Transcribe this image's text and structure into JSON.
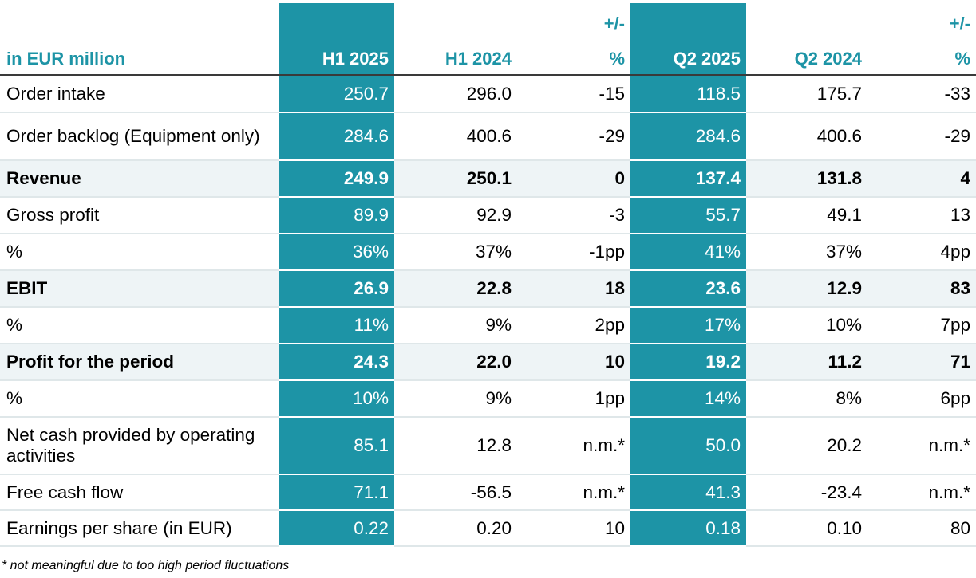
{
  "header": {
    "unit_label": "in EUR million",
    "col_h1_2025": "H1 2025",
    "col_h1_2024": "H1 2024",
    "col_h1_change_top": "+/-",
    "col_h1_change_bottom": "%",
    "col_q2_2025": "Q2 2025",
    "col_q2_2024": "Q2 2024",
    "col_q2_change_top": "+/-",
    "col_q2_change_bottom": "%"
  },
  "rows": [
    {
      "label": "Order intake",
      "h1_2025": "250.7",
      "h1_2024": "296.0",
      "h1_change": "-15",
      "q2_2025": "118.5",
      "q2_2024": "175.7",
      "q2_change": "-33"
    },
    {
      "label": "Order backlog (Equipment only)",
      "h1_2025": "284.6",
      "h1_2024": "400.6",
      "h1_change": "-29",
      "q2_2025": "284.6",
      "q2_2024": "400.6",
      "q2_change": "-29"
    },
    {
      "label": "Revenue",
      "h1_2025": "249.9",
      "h1_2024": "250.1",
      "h1_change": "0",
      "q2_2025": "137.4",
      "q2_2024": "131.8",
      "q2_change": "4"
    },
    {
      "label": "Gross profit",
      "h1_2025": "89.9",
      "h1_2024": "92.9",
      "h1_change": "-3",
      "q2_2025": "55.7",
      "q2_2024": "49.1",
      "q2_change": "13"
    },
    {
      "label": "%",
      "h1_2025": "36%",
      "h1_2024": "37%",
      "h1_change": "-1pp",
      "q2_2025": "41%",
      "q2_2024": "37%",
      "q2_change": "4pp"
    },
    {
      "label": "EBIT",
      "h1_2025": "26.9",
      "h1_2024": "22.8",
      "h1_change": "18",
      "q2_2025": "23.6",
      "q2_2024": "12.9",
      "q2_change": "83"
    },
    {
      "label": "%",
      "h1_2025": "11%",
      "h1_2024": "9%",
      "h1_change": "2pp",
      "q2_2025": "17%",
      "q2_2024": "10%",
      "q2_change": "7pp"
    },
    {
      "label": "Profit for the period",
      "h1_2025": "24.3",
      "h1_2024": "22.0",
      "h1_change": "10",
      "q2_2025": "19.2",
      "q2_2024": "11.2",
      "q2_change": "71"
    },
    {
      "label": "%",
      "h1_2025": "10%",
      "h1_2024": "9%",
      "h1_change": "1pp",
      "q2_2025": "14%",
      "q2_2024": "8%",
      "q2_change": "6pp"
    },
    {
      "label": "Net cash provided by operating activities",
      "h1_2025": "85.1",
      "h1_2024": "12.8",
      "h1_change": "n.m.*",
      "q2_2025": "50.0",
      "q2_2024": "20.2",
      "q2_change": "n.m.*"
    },
    {
      "label": "Free cash flow",
      "h1_2025": "71.1",
      "h1_2024": "-56.5",
      "h1_change": "n.m.*",
      "q2_2025": "41.3",
      "q2_2024": "-23.4",
      "q2_change": "n.m.*"
    },
    {
      "label": "Earnings per share (in EUR)",
      "h1_2025": "0.22",
      "h1_2024": "0.20",
      "h1_change": "10",
      "q2_2025": "0.18",
      "q2_2024": "0.10",
      "q2_change": "80"
    }
  ],
  "footnote": "* not meaningful due to too high period fluctuations",
  "colors": {
    "accent": "#1d94a6",
    "bold_row_bg": "#eef4f6"
  }
}
